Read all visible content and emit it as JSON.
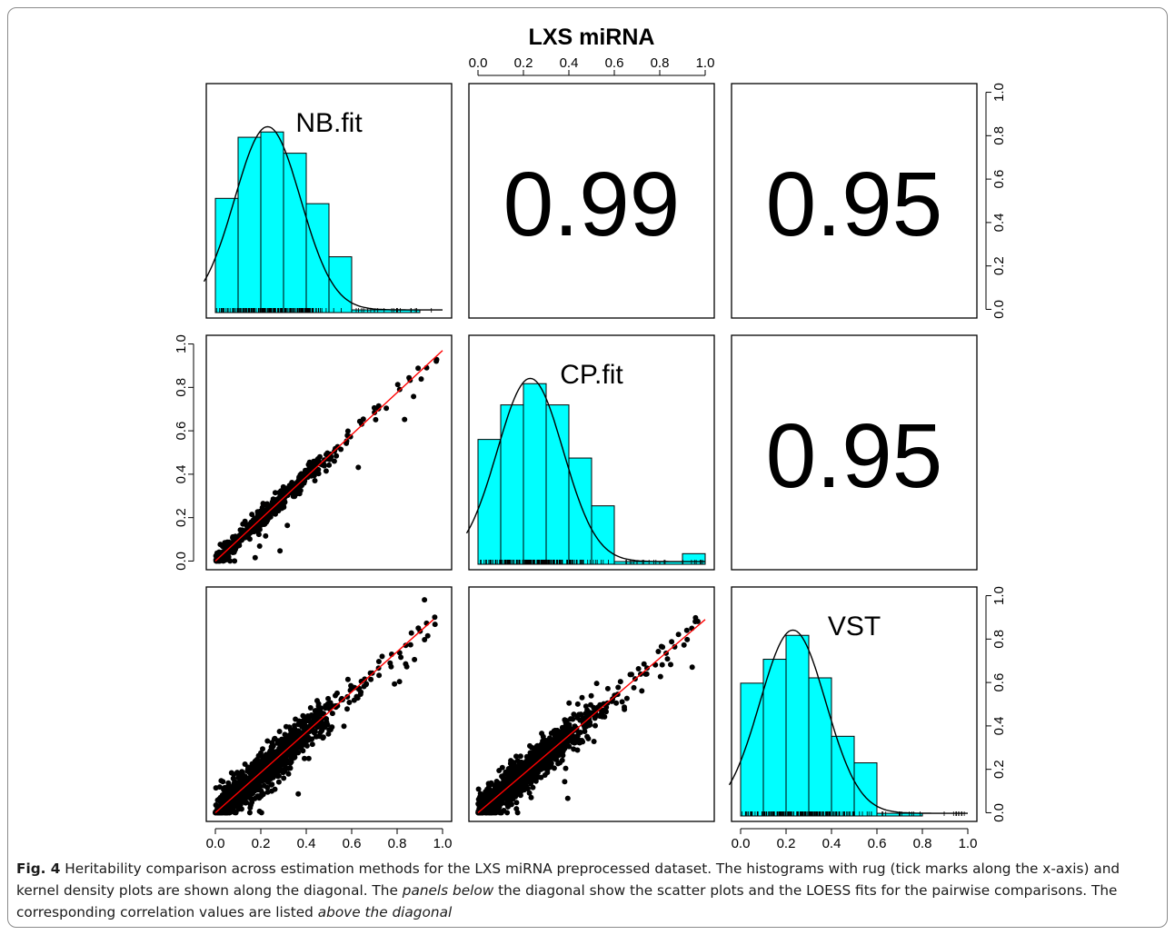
{
  "chart_data": {
    "type": "scatter-matrix",
    "title": "LXS miRNA",
    "variables": [
      "NB.fit",
      "CP.fit",
      "VST"
    ],
    "axis_ticks": [
      "0.0",
      "0.2",
      "0.4",
      "0.6",
      "0.8",
      "1.0"
    ],
    "axis_range": [
      0,
      1
    ],
    "correlations": [
      {
        "row": 0,
        "col": 1,
        "value": "0.99"
      },
      {
        "row": 0,
        "col": 2,
        "value": "0.95"
      },
      {
        "row": 1,
        "col": 2,
        "value": "0.95"
      }
    ],
    "histograms": [
      {
        "variable": "NB.fit",
        "bin_width": 0.1,
        "bins_start": 0.0,
        "density": [
          0.43,
          0.66,
          0.68,
          0.6,
          0.41,
          0.21,
          0.01,
          0.01,
          0.01,
          0.0
        ]
      },
      {
        "variable": "CP.fit",
        "bin_width": 0.1,
        "bins_start": 0.0,
        "density": [
          0.47,
          0.6,
          0.68,
          0.6,
          0.4,
          0.22,
          0.01,
          0.01,
          0.01,
          0.04
        ]
      },
      {
        "variable": "VST",
        "bin_width": 0.1,
        "bins_start": 0.0,
        "density": [
          0.5,
          0.59,
          0.68,
          0.52,
          0.3,
          0.2,
          0.01,
          0.01,
          0.0,
          0.0
        ]
      }
    ],
    "scatter_panels": [
      {
        "row": 1,
        "col": 0,
        "x": "NB.fit",
        "y": "CP.fit",
        "fit": "LOESS",
        "fit_line": [
          [
            0.0,
            0.0
          ],
          [
            1.0,
            0.97
          ]
        ]
      },
      {
        "row": 2,
        "col": 0,
        "x": "NB.fit",
        "y": "VST",
        "fit": "LOESS",
        "fit_line": [
          [
            0.0,
            0.0
          ],
          [
            0.96,
            0.89
          ]
        ]
      },
      {
        "row": 2,
        "col": 1,
        "x": "CP.fit",
        "y": "VST",
        "fit": "LOESS",
        "fit_line": [
          [
            0.0,
            0.0
          ],
          [
            1.0,
            0.89
          ]
        ]
      }
    ],
    "colors": {
      "histogram_fill": "#00ffff",
      "fit_line": "#ff0000",
      "points": "#000000",
      "density": "#000000"
    }
  },
  "caption": {
    "label": "Fig. 4",
    "part1": " Heritability comparison across estimation methods for the LXS miRNA preprocessed dataset. The histograms with rug (tick marks along the x-axis) and kernel density plots are shown along the diagonal. The ",
    "em1": "panels below",
    "part2": " the diagonal show the scatter plots and the LOESS fits for the pairwise comparisons. The corresponding correlation values are listed ",
    "em2": "above the diagonal"
  }
}
